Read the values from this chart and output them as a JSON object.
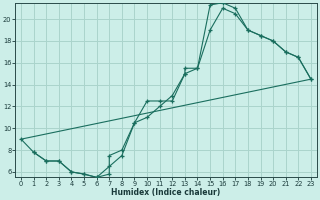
{
  "xlabel": "Humidex (Indice chaleur)",
  "bg_color": "#cceee8",
  "grid_color": "#aad4cc",
  "line_color": "#1a6e5e",
  "xlim": [
    -0.5,
    23.5
  ],
  "ylim": [
    5.5,
    21.5
  ],
  "xticks": [
    0,
    1,
    2,
    3,
    4,
    5,
    6,
    7,
    8,
    9,
    10,
    11,
    12,
    13,
    14,
    15,
    16,
    17,
    18,
    19,
    20,
    21,
    22,
    23
  ],
  "yticks": [
    6,
    8,
    10,
    12,
    14,
    16,
    18,
    20
  ],
  "curve1_x": [
    0,
    1,
    2,
    3,
    4,
    5,
    6,
    7,
    8,
    9,
    10,
    11,
    12,
    13,
    14,
    15,
    16,
    17,
    18,
    19,
    20,
    21,
    22,
    23
  ],
  "curve1_y": [
    9.0,
    7.8,
    7.0,
    7.0,
    6.0,
    5.8,
    5.5,
    6.5,
    7.5,
    10.5,
    11.0,
    12.0,
    13.0,
    15.0,
    15.5,
    19.0,
    21.0,
    20.5,
    19.0,
    18.5,
    18.0,
    17.0,
    16.5,
    14.5
  ],
  "curve2_x": [
    1,
    2,
    3,
    4,
    5,
    6,
    7,
    7,
    8,
    9,
    10,
    11,
    12,
    13,
    13,
    14,
    15,
    16,
    17,
    18,
    19,
    20,
    21,
    22,
    23
  ],
  "curve2_y": [
    7.8,
    7.0,
    7.0,
    6.0,
    5.8,
    5.5,
    5.8,
    7.5,
    8.0,
    10.5,
    12.5,
    12.5,
    12.5,
    15.0,
    15.5,
    15.5,
    21.3,
    21.5,
    21.0,
    19.0,
    18.5,
    18.0,
    17.0,
    16.5,
    14.5
  ],
  "curve3_x": [
    0,
    23
  ],
  "curve3_y": [
    9.0,
    14.5
  ]
}
